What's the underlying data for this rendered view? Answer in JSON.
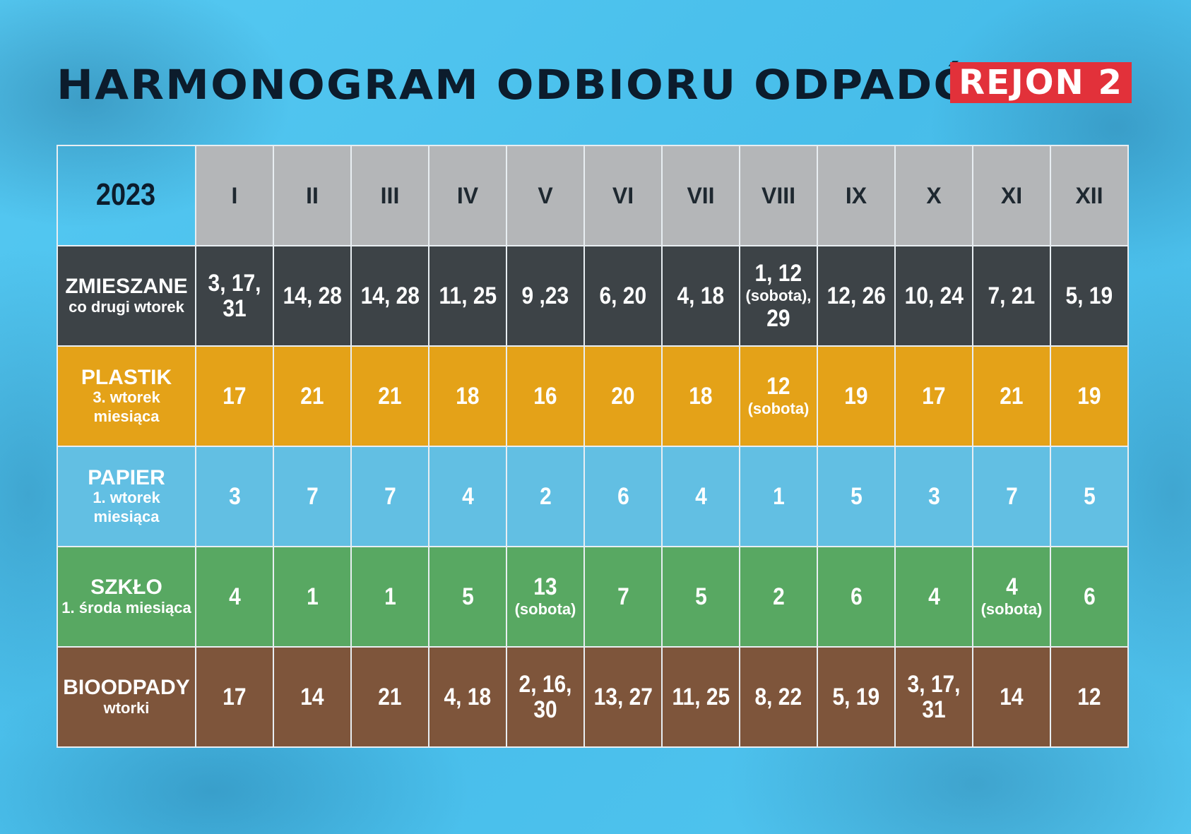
{
  "header": {
    "title": "HARMONOGRAM ODBIORU ODPADÓW",
    "region": "REJON 2",
    "year": "2023"
  },
  "months": [
    "I",
    "II",
    "III",
    "IV",
    "V",
    "VI",
    "VII",
    "VIII",
    "IX",
    "X",
    "XI",
    "XII"
  ],
  "rows": [
    {
      "name": "ZMIESZANE",
      "desc": "co drugi wtorek",
      "color": "#3d4347",
      "values": [
        {
          "main": "3, 17, 31"
        },
        {
          "main": "14, 28"
        },
        {
          "main": "14, 28"
        },
        {
          "main": "11, 25"
        },
        {
          "main": "9 ,23"
        },
        {
          "main": "6, 20"
        },
        {
          "main": "4, 18"
        },
        {
          "main": "1, 12",
          "sub": "(sobota),",
          "tail": "29"
        },
        {
          "main": "12, 26"
        },
        {
          "main": "10, 24"
        },
        {
          "main": "7, 21"
        },
        {
          "main": "5, 19"
        }
      ]
    },
    {
      "name": "PLASTIK",
      "desc": "3. wtorek miesiąca",
      "color": "#e4a218",
      "values": [
        {
          "main": "17"
        },
        {
          "main": "21"
        },
        {
          "main": "21"
        },
        {
          "main": "18"
        },
        {
          "main": "16"
        },
        {
          "main": "20"
        },
        {
          "main": "18"
        },
        {
          "main": "12",
          "sub": "(sobota)"
        },
        {
          "main": "19"
        },
        {
          "main": "17"
        },
        {
          "main": "21"
        },
        {
          "main": "19"
        }
      ]
    },
    {
      "name": "PAPIER",
      "desc": "1. wtorek miesiąca",
      "color": "#62bfe3",
      "values": [
        {
          "main": "3"
        },
        {
          "main": "7"
        },
        {
          "main": "7"
        },
        {
          "main": "4"
        },
        {
          "main": "2"
        },
        {
          "main": "6"
        },
        {
          "main": "4"
        },
        {
          "main": "1"
        },
        {
          "main": "5"
        },
        {
          "main": "3"
        },
        {
          "main": "7"
        },
        {
          "main": "5"
        }
      ]
    },
    {
      "name": "SZKŁO",
      "desc": "1. środa miesiąca",
      "color": "#58a862",
      "values": [
        {
          "main": "4"
        },
        {
          "main": "1"
        },
        {
          "main": "1"
        },
        {
          "main": "5"
        },
        {
          "main": "13",
          "sub": "(sobota)"
        },
        {
          "main": "7"
        },
        {
          "main": "5"
        },
        {
          "main": "2"
        },
        {
          "main": "6"
        },
        {
          "main": "4"
        },
        {
          "main": "4",
          "sub": "(sobota)"
        },
        {
          "main": "6"
        }
      ]
    },
    {
      "name": "BIOODPADY",
      "desc": "wtorki",
      "color": "#7e553b",
      "values": [
        {
          "main": "17"
        },
        {
          "main": "14"
        },
        {
          "main": "21"
        },
        {
          "main": "4, 18"
        },
        {
          "main": "2, 16, 30"
        },
        {
          "main": "13, 27"
        },
        {
          "main": "11, 25"
        },
        {
          "main": "8, 22"
        },
        {
          "main": "5, 19"
        },
        {
          "main": "3, 17, 31"
        },
        {
          "main": "14"
        },
        {
          "main": "12"
        }
      ]
    }
  ]
}
